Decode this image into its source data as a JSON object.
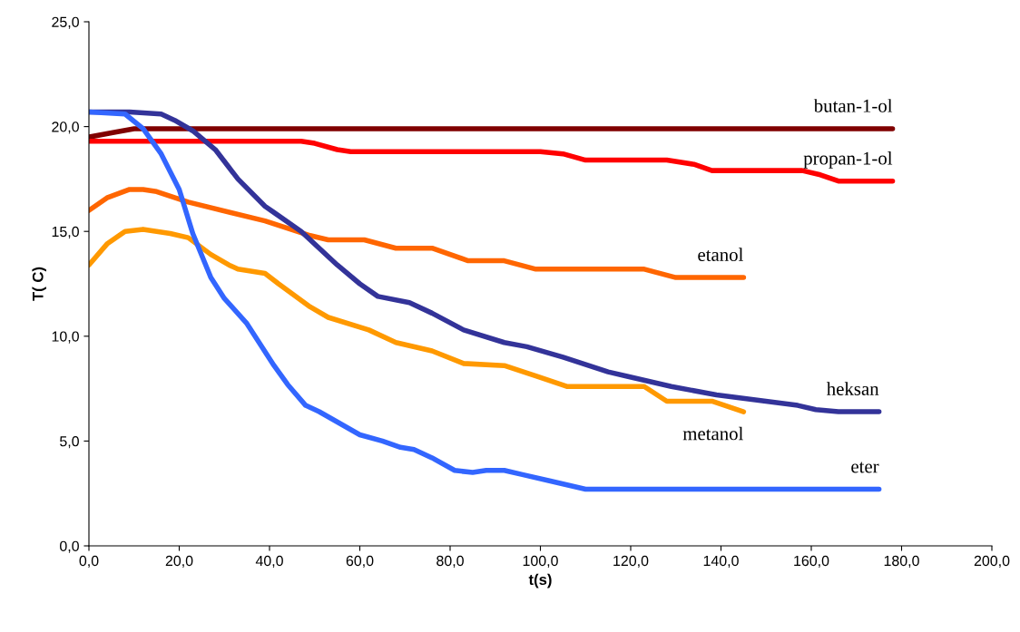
{
  "chart_data": {
    "type": "line",
    "xlabel": "t(s)",
    "ylabel": "T( C)",
    "xlim": [
      0,
      200
    ],
    "ylim": [
      0,
      25
    ],
    "xticks": [
      {
        "value": 0,
        "label": "0,0"
      },
      {
        "value": 20,
        "label": "20,0"
      },
      {
        "value": 40,
        "label": "40,0"
      },
      {
        "value": 60,
        "label": "60,0"
      },
      {
        "value": 80,
        "label": "80,0"
      },
      {
        "value": 100,
        "label": "100,0"
      },
      {
        "value": 120,
        "label": "120,0"
      },
      {
        "value": 140,
        "label": "140,0"
      },
      {
        "value": 160,
        "label": "160,0"
      },
      {
        "value": 180,
        "label": "180,0"
      },
      {
        "value": 200,
        "label": "200,0"
      }
    ],
    "yticks": [
      {
        "value": 0,
        "label": "0,0"
      },
      {
        "value": 5,
        "label": "5,0"
      },
      {
        "value": 10,
        "label": "10,0"
      },
      {
        "value": 15,
        "label": "15,0"
      },
      {
        "value": 20,
        "label": "20,0"
      },
      {
        "value": 25,
        "label": "25,0"
      }
    ],
    "grid": false,
    "legend": false,
    "marker": "none",
    "line_style": "solid",
    "series": [
      {
        "name": "butan-1-ol",
        "color": "#800000",
        "x": [
          0,
          5,
          10,
          178
        ],
        "values": [
          19.5,
          19.7,
          19.9,
          19.9
        ]
      },
      {
        "name": "propan-1-ol",
        "color": "#ff0000",
        "x": [
          0,
          47,
          50,
          55,
          58,
          100,
          105,
          110,
          128,
          134,
          138,
          158,
          162,
          166,
          178
        ],
        "values": [
          19.3,
          19.3,
          19.2,
          18.9,
          18.8,
          18.8,
          18.7,
          18.4,
          18.4,
          18.2,
          17.9,
          17.9,
          17.7,
          17.4,
          17.4
        ]
      },
      {
        "name": "etanol",
        "color": "#ff6600",
        "x": [
          0,
          4,
          9,
          12,
          15,
          22,
          39,
          49,
          53,
          61,
          68,
          76,
          84,
          92,
          99,
          123,
          130,
          145
        ],
        "values": [
          16.0,
          16.6,
          17.0,
          17.0,
          16.9,
          16.4,
          15.5,
          14.8,
          14.6,
          14.6,
          14.2,
          14.2,
          13.6,
          13.6,
          13.2,
          13.2,
          12.8,
          12.8
        ]
      },
      {
        "name": "metanol",
        "color": "#ff9900",
        "x": [
          0,
          4,
          8,
          12,
          18,
          22,
          27,
          31,
          33,
          39,
          42,
          49,
          53,
          62,
          68,
          76,
          83,
          92,
          99,
          106,
          123,
          128,
          138,
          145
        ],
        "values": [
          13.4,
          14.4,
          15.0,
          15.1,
          14.9,
          14.7,
          13.9,
          13.4,
          13.2,
          13.0,
          12.5,
          11.4,
          10.9,
          10.3,
          9.7,
          9.3,
          8.7,
          8.6,
          8.1,
          7.6,
          7.6,
          6.9,
          6.9,
          6.4
        ]
      },
      {
        "name": "heksan",
        "color": "#333399",
        "x": [
          0,
          9,
          16,
          19,
          23,
          28,
          33,
          39,
          41,
          47,
          55,
          60,
          64,
          71,
          76,
          83,
          92,
          97,
          105,
          115,
          119,
          129,
          139,
          157,
          161,
          166,
          175
        ],
        "values": [
          20.7,
          20.7,
          20.6,
          20.3,
          19.8,
          18.9,
          17.5,
          16.2,
          15.9,
          15.0,
          13.4,
          12.5,
          11.9,
          11.6,
          11.1,
          10.3,
          9.7,
          9.5,
          9.0,
          8.3,
          8.1,
          7.6,
          7.2,
          6.7,
          6.5,
          6.4,
          6.4
        ]
      },
      {
        "name": "eter",
        "color": "#3366ff",
        "x": [
          0,
          8,
          12,
          16,
          20,
          23,
          27,
          30,
          35,
          41,
          44,
          48,
          51,
          60,
          65,
          69,
          72,
          76,
          81,
          85,
          88,
          92,
          96,
          102,
          110,
          175
        ],
        "values": [
          20.7,
          20.6,
          19.9,
          18.7,
          17.0,
          14.9,
          12.8,
          11.8,
          10.6,
          8.6,
          7.7,
          6.7,
          6.4,
          5.3,
          5.0,
          4.7,
          4.6,
          4.2,
          3.6,
          3.5,
          3.6,
          3.6,
          3.4,
          3.1,
          2.7,
          2.7
        ]
      }
    ]
  }
}
